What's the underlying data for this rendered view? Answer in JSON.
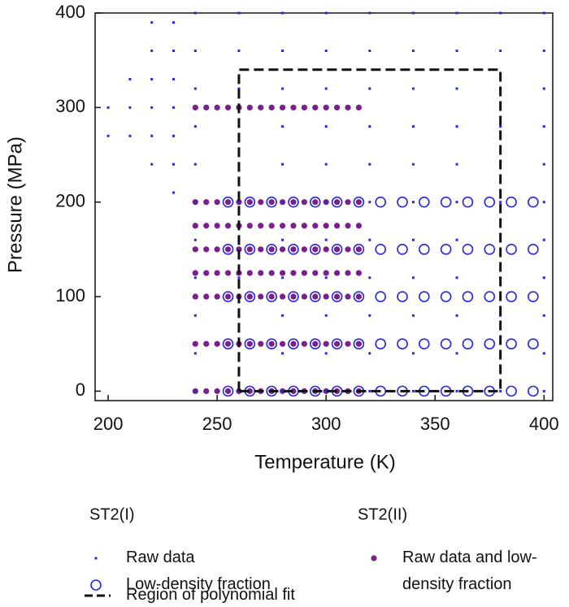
{
  "chart_data": {
    "type": "scatter",
    "x_label": "Temperature (K)",
    "y_label": "Pressure (MPa)",
    "xlim": [
      194,
      404
    ],
    "ylim": [
      -10,
      400
    ],
    "xticks": [
      200,
      250,
      300,
      350,
      400
    ],
    "yticks": [
      0,
      100,
      200,
      300,
      400
    ],
    "legend_titles": [
      "ST2(I)",
      "ST2(II)"
    ],
    "series": [
      {
        "name": "Raw data",
        "color": "#2626e6",
        "marker": "square",
        "x": [
          200,
          200,
          210,
          210,
          210,
          220,
          220,
          220,
          220,
          220,
          220,
          230,
          230,
          230,
          230,
          230,
          230,
          230,
          240,
          240,
          240,
          240,
          240,
          240,
          240,
          240,
          240,
          240,
          240,
          260,
          260,
          260,
          260,
          260,
          260,
          260,
          260,
          260,
          260,
          260,
          280,
          280,
          280,
          280,
          280,
          280,
          280,
          280,
          280,
          280,
          280,
          300,
          300,
          300,
          300,
          300,
          300,
          300,
          300,
          300,
          300,
          300,
          320,
          320,
          320,
          320,
          320,
          320,
          320,
          320,
          320,
          320,
          320,
          340,
          340,
          340,
          340,
          340,
          340,
          340,
          340,
          340,
          340,
          340,
          360,
          360,
          360,
          360,
          360,
          360,
          360,
          360,
          360,
          360,
          360,
          380,
          380,
          380,
          380,
          380,
          380,
          380,
          380,
          380,
          380,
          380,
          400,
          400,
          400,
          400,
          400,
          400,
          400,
          400,
          400,
          400,
          400
        ],
        "values": [
          270,
          300,
          270,
          300,
          330,
          240,
          270,
          300,
          330,
          360,
          390,
          210,
          240,
          270,
          300,
          330,
          360,
          390,
          0,
          40,
          80,
          120,
          160,
          200,
          240,
          280,
          320,
          360,
          400,
          0,
          40,
          80,
          120,
          160,
          200,
          240,
          280,
          320,
          360,
          400,
          0,
          40,
          80,
          120,
          160,
          200,
          240,
          280,
          320,
          360,
          400,
          0,
          40,
          80,
          120,
          160,
          200,
          240,
          280,
          320,
          360,
          400,
          0,
          40,
          80,
          120,
          160,
          200,
          240,
          280,
          320,
          360,
          400,
          0,
          40,
          80,
          120,
          160,
          200,
          240,
          280,
          320,
          360,
          400,
          0,
          40,
          80,
          120,
          160,
          200,
          240,
          280,
          320,
          360,
          400,
          0,
          40,
          80,
          120,
          160,
          200,
          240,
          280,
          320,
          360,
          400,
          0,
          40,
          80,
          120,
          160,
          200,
          240,
          280,
          320,
          360,
          400
        ]
      },
      {
        "name": "Low-density fraction",
        "color": "#2626e6",
        "marker": "ring",
        "x": [
          255,
          265,
          275,
          285,
          295,
          305,
          315,
          325,
          335,
          345,
          355,
          365,
          375,
          385,
          395,
          255,
          265,
          275,
          285,
          295,
          305,
          315,
          325,
          335,
          345,
          355,
          365,
          375,
          385,
          395,
          255,
          265,
          275,
          285,
          295,
          305,
          315,
          325,
          335,
          345,
          355,
          365,
          375,
          385,
          395,
          255,
          265,
          275,
          285,
          295,
          305,
          315,
          325,
          335,
          345,
          355,
          365,
          375,
          385,
          395,
          255,
          265,
          275,
          285,
          295,
          305,
          315,
          325,
          335,
          345,
          355,
          365,
          375,
          385,
          395
        ],
        "values": [
          0,
          0,
          0,
          0,
          0,
          0,
          0,
          0,
          0,
          0,
          0,
          0,
          0,
          0,
          0,
          50,
          50,
          50,
          50,
          50,
          50,
          50,
          50,
          50,
          50,
          50,
          50,
          50,
          50,
          50,
          100,
          100,
          100,
          100,
          100,
          100,
          100,
          100,
          100,
          100,
          100,
          100,
          100,
          100,
          100,
          150,
          150,
          150,
          150,
          150,
          150,
          150,
          150,
          150,
          150,
          150,
          150,
          150,
          150,
          150,
          200,
          200,
          200,
          200,
          200,
          200,
          200,
          200,
          200,
          200,
          200,
          200,
          200,
          200,
          200
        ]
      },
      {
        "name": "Raw data and low-density fraction",
        "color": "#7b1f8e",
        "marker": "dot",
        "x": [
          240,
          245,
          250,
          255,
          260,
          265,
          270,
          275,
          280,
          285,
          290,
          295,
          300,
          305,
          310,
          315,
          240,
          245,
          250,
          255,
          260,
          265,
          270,
          275,
          280,
          285,
          290,
          295,
          300,
          305,
          310,
          315,
          240,
          245,
          250,
          255,
          260,
          265,
          270,
          275,
          280,
          285,
          290,
          295,
          300,
          305,
          310,
          315,
          240,
          245,
          250,
          255,
          260,
          265,
          270,
          275,
          280,
          285,
          290,
          295,
          300,
          305,
          310,
          315,
          240,
          245,
          250,
          255,
          260,
          265,
          270,
          275,
          280,
          285,
          290,
          295,
          300,
          305,
          310,
          315,
          240,
          245,
          250,
          255,
          260,
          265,
          270,
          275,
          280,
          285,
          290,
          295,
          300,
          305,
          310,
          315,
          240,
          245,
          250,
          255,
          260,
          265,
          270,
          275,
          280,
          285,
          290,
          295,
          300,
          305,
          310,
          315,
          240,
          245,
          250,
          255,
          260,
          265,
          270,
          275,
          280,
          285,
          290,
          295,
          300,
          305,
          310,
          315
        ],
        "values": [
          0,
          0,
          0,
          0,
          0,
          0,
          0,
          0,
          0,
          0,
          0,
          0,
          0,
          0,
          0,
          0,
          50,
          50,
          50,
          50,
          50,
          50,
          50,
          50,
          50,
          50,
          50,
          50,
          50,
          50,
          50,
          50,
          100,
          100,
          100,
          100,
          100,
          100,
          100,
          100,
          100,
          100,
          100,
          100,
          100,
          100,
          100,
          100,
          125,
          125,
          125,
          125,
          125,
          125,
          125,
          125,
          125,
          125,
          125,
          125,
          125,
          125,
          125,
          125,
          150,
          150,
          150,
          150,
          150,
          150,
          150,
          150,
          150,
          150,
          150,
          150,
          150,
          150,
          150,
          150,
          175,
          175,
          175,
          175,
          175,
          175,
          175,
          175,
          175,
          175,
          175,
          175,
          175,
          175,
          175,
          175,
          200,
          200,
          200,
          200,
          200,
          200,
          200,
          200,
          200,
          200,
          200,
          200,
          200,
          200,
          200,
          200,
          300,
          300,
          300,
          300,
          300,
          300,
          300,
          300,
          300,
          300,
          300,
          300,
          300,
          300,
          300,
          300
        ]
      }
    ],
    "fit_region": {
      "name": "Region of polynomial fit",
      "color": "#111111",
      "x": [
        260,
        380
      ],
      "y": [
        0,
        340
      ]
    }
  }
}
